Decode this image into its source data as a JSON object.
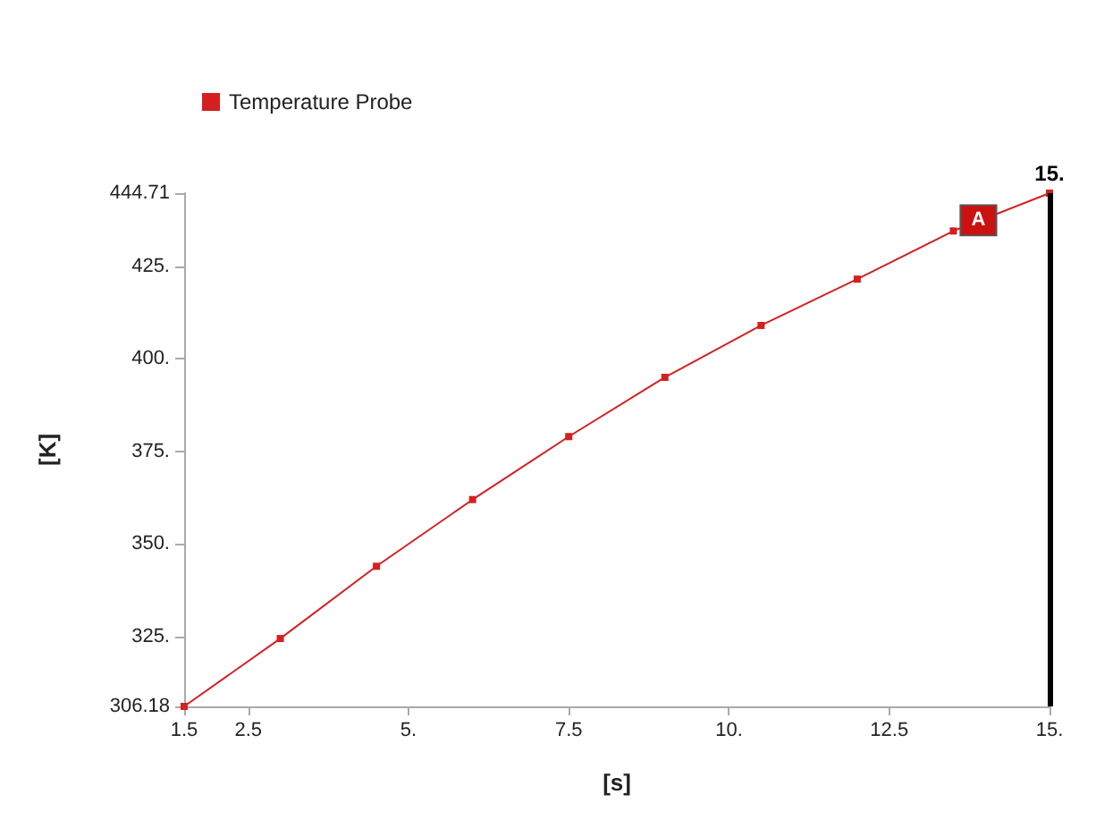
{
  "chart_data": {
    "type": "line",
    "xlabel": "[s]",
    "ylabel": "[K]",
    "x": [
      1.5,
      3,
      4.5,
      6,
      7.5,
      9,
      10.5,
      12,
      13.5,
      15
    ],
    "series": [
      {
        "name": "Temperature Probe",
        "color": "#d42020",
        "values": [
          306.18,
          324.5,
          344,
          362,
          379,
          395,
          409,
          421.5,
          434.5,
          444.71
        ]
      }
    ],
    "xlim": [
      1.5,
      15
    ],
    "xticks": [
      1.5,
      2.5,
      {
        "value": 5,
        "label": "5."
      },
      7.5,
      {
        "value": 10,
        "label": "10."
      },
      12.5,
      {
        "value": 15,
        "label": "15."
      }
    ],
    "ylim": [
      306.18,
      444.71
    ],
    "yticks": [
      306.18,
      {
        "value": 325,
        "label": "325."
      },
      {
        "value": 350,
        "label": "350."
      },
      {
        "value": 375,
        "label": "375."
      },
      {
        "value": 400,
        "label": "400."
      },
      {
        "value": 425,
        "label": "425."
      },
      444.71
    ],
    "ref_lines": [
      {
        "axis": "x",
        "value": 15,
        "label": "15.",
        "color": "#000000"
      }
    ],
    "annotations": [
      {
        "text": "A",
        "x": 13.5,
        "y": 434.5
      }
    ],
    "legend": "top left",
    "marker": "square",
    "line_style": "solid",
    "grid": false
  }
}
